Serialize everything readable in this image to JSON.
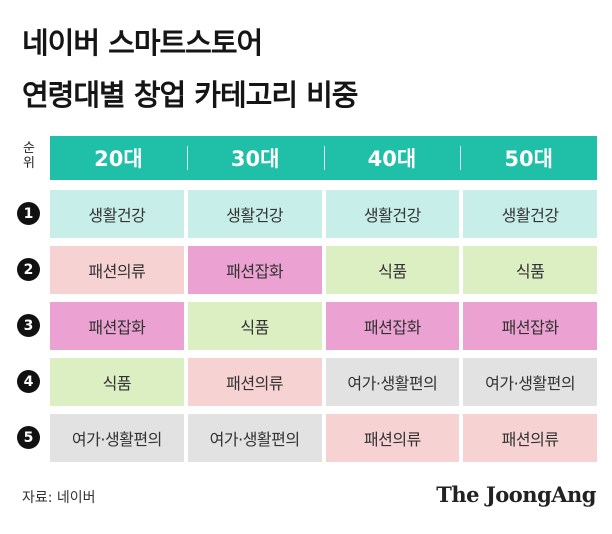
{
  "chart_data": {
    "type": "table",
    "title_lines": [
      "네이버 스마트스토어",
      "연령대별 창업 카테고리 비중"
    ],
    "rank_header": [
      "순",
      "위"
    ],
    "columns": [
      "20대",
      "30대",
      "40대",
      "50대"
    ],
    "rows": [
      {
        "rank": "1",
        "cells": [
          {
            "text": "생활건강",
            "color": "#c8eeea"
          },
          {
            "text": "생활건강",
            "color": "#c8eeea"
          },
          {
            "text": "생활건강",
            "color": "#c8eeea"
          },
          {
            "text": "생활건강",
            "color": "#c8eeea"
          }
        ]
      },
      {
        "rank": "2",
        "cells": [
          {
            "text": "패션의류",
            "color": "#f6d2d2"
          },
          {
            "text": "패션잡화",
            "color": "#eba2d2"
          },
          {
            "text": "식품",
            "color": "#dcefc2"
          },
          {
            "text": "식품",
            "color": "#dcefc2"
          }
        ]
      },
      {
        "rank": "3",
        "cells": [
          {
            "text": "패션잡화",
            "color": "#eba2d2"
          },
          {
            "text": "식품",
            "color": "#dcefc2"
          },
          {
            "text": "패션잡화",
            "color": "#eba2d2"
          },
          {
            "text": "패션잡화",
            "color": "#eba2d2"
          }
        ]
      },
      {
        "rank": "4",
        "cells": [
          {
            "text": "식품",
            "color": "#dcefc2"
          },
          {
            "text": "패션의류",
            "color": "#f6d2d2"
          },
          {
            "text": "여가·생활편의",
            "color": "#e2e2e2"
          },
          {
            "text": "여가·생활편의",
            "color": "#e2e2e2"
          }
        ]
      },
      {
        "rank": "5",
        "cells": [
          {
            "text": "여가·생활편의",
            "color": "#e2e2e2"
          },
          {
            "text": "여가·생활편의",
            "color": "#e2e2e2"
          },
          {
            "text": "패션의류",
            "color": "#f6d2d2"
          },
          {
            "text": "패션의류",
            "color": "#f6d2d2"
          }
        ]
      }
    ],
    "header_color": "#1fbfa8"
  },
  "footer": {
    "source": "자료: 네이버",
    "brand": "The JoongAng"
  }
}
